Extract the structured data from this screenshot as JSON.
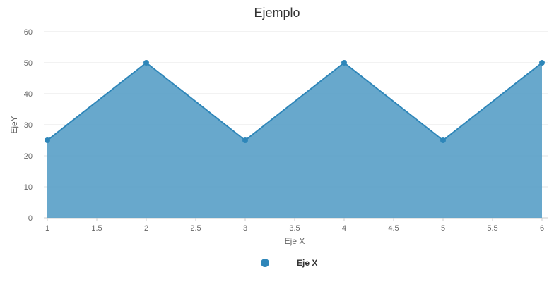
{
  "chart_data": {
    "type": "area",
    "title": "Ejemplo",
    "xlabel": "Eje X",
    "ylabel": "EjeY",
    "xlim": [
      1,
      6
    ],
    "ylim": [
      0,
      60
    ],
    "x_ticks": [
      "1",
      "1.5",
      "2",
      "2.5",
      "3",
      "3.5",
      "4",
      "4.5",
      "5",
      "5.5",
      "6"
    ],
    "y_ticks": [
      "0",
      "10",
      "20",
      "30",
      "40",
      "50",
      "60"
    ],
    "grid": true,
    "legend_position": "bottom-center",
    "series": [
      {
        "name": "Eje X",
        "color": "#2e86b9",
        "fill_color": "#5ba1c8",
        "points": [
          {
            "x": 1,
            "y": 25
          },
          {
            "x": 2,
            "y": 50
          },
          {
            "x": 3,
            "y": 25
          },
          {
            "x": 4,
            "y": 50
          },
          {
            "x": 5,
            "y": 25
          },
          {
            "x": 6,
            "y": 50
          }
        ]
      }
    ]
  }
}
